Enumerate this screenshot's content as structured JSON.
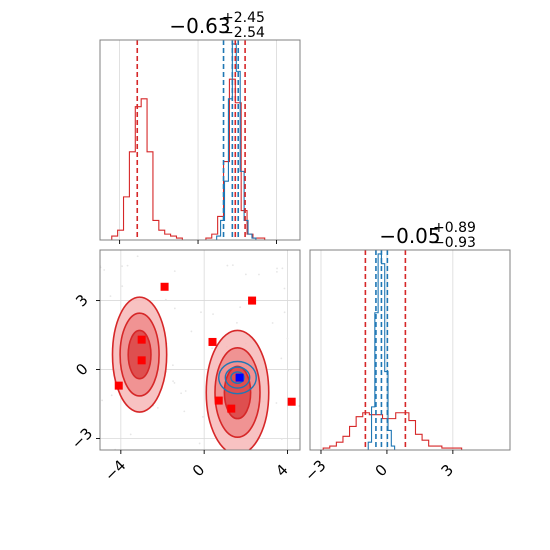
{
  "chart_data": {
    "type": "corner",
    "parameters": 2,
    "panels": [
      {
        "id": "hist-param-1",
        "type": "histogram",
        "title": {
          "main": "−0.63",
          "sup": "+2.45",
          "sub": "−2.54"
        },
        "x_range": [
          -5.0,
          5.2
        ],
        "x_ticks": [
          -4,
          0,
          4
        ],
        "x_tick_labels": [
          "",
          "",
          ""
        ],
        "grid": true,
        "series": [
          {
            "name": "",
            "color": "#d62728",
            "bin_edges": [
              -5.0,
              -4.7,
              -4.4,
              -4.1,
              -3.8,
              -3.5,
              -3.2,
              -2.9,
              -2.6,
              -2.3,
              -2.0,
              -1.7,
              -1.4,
              -1.1,
              -0.8,
              -0.5,
              -0.2,
              0.1,
              0.4,
              0.7,
              1.0,
              1.3,
              1.6,
              1.9,
              2.2,
              2.5,
              2.8,
              3.1,
              3.4,
              3.7,
              4.0,
              4.3,
              4.6,
              4.9,
              5.2
            ],
            "counts": [
              0,
              0,
              0.02,
              0.05,
              0.22,
              0.45,
              0.68,
              0.72,
              0.45,
              0.1,
              0.05,
              0.03,
              0.02,
              0.01,
              0,
              0,
              0,
              0,
              0.01,
              0.03,
              0.12,
              0.4,
              0.82,
              0.7,
              0.15,
              0.03,
              0.01,
              0.01,
              0,
              0,
              0,
              0,
              0,
              0
            ]
          },
          {
            "name": "",
            "color": "#1f77b4",
            "bin_edges": [
              0.75,
              0.95,
              1.15,
              1.35,
              1.55,
              1.75,
              1.95,
              2.15,
              2.35,
              2.55,
              2.75,
              2.95,
              3.15
            ],
            "counts": [
              0,
              0.02,
              0.1,
              0.3,
              0.72,
              1.0,
              0.86,
              0.35,
              0.1,
              0.03,
              0.01,
              0
            ]
          }
        ],
        "vlines": [
          {
            "x": -3.1,
            "color": "#d62728"
          },
          {
            "x": 1.9,
            "color": "#d62728"
          },
          {
            "x": 2.4,
            "color": "#d62728"
          },
          {
            "x": 1.3,
            "color": "#1f77b4"
          },
          {
            "x": 1.75,
            "color": "#1f77b4"
          },
          {
            "x": 2.05,
            "color": "#1f77b4"
          }
        ]
      },
      {
        "id": "scatter-2d",
        "type": "contour",
        "x_range": [
          -5.0,
          4.6
        ],
        "y_range": [
          -3.5,
          5.2
        ],
        "x_ticks": [
          -4,
          0,
          4
        ],
        "x_tick_labels": [
          "−4",
          "0",
          "4"
        ],
        "y_ticks": [
          -3,
          0,
          3
        ],
        "y_tick_labels": [
          "−3",
          "0",
          "3"
        ],
        "grid": true,
        "red_markers": [
          {
            "x": -1.9,
            "y": 3.6
          },
          {
            "x": 2.3,
            "y": 3.0
          },
          {
            "x": 0.4,
            "y": 1.2
          },
          {
            "x": -3.0,
            "y": 1.3
          },
          {
            "x": -3.0,
            "y": 0.4
          },
          {
            "x": -4.1,
            "y": -0.7
          },
          {
            "x": 0.7,
            "y": -1.35
          },
          {
            "x": 1.3,
            "y": -1.7
          },
          {
            "x": 4.2,
            "y": -1.4
          }
        ],
        "blue_marker": {
          "x": 1.7,
          "y": -0.35
        },
        "red_modes": [
          {
            "cx": -3.1,
            "cy": 0.65,
            "sx": 1.3,
            "sy": 2.5
          },
          {
            "cx": 1.6,
            "cy": -1.0,
            "sx": 1.5,
            "sy": 2.7
          }
        ],
        "blue_mode": {
          "cx": 1.6,
          "cy": -0.35,
          "sx": 0.9,
          "sy": 0.7
        }
      },
      {
        "id": "hist-param-2",
        "type": "histogram",
        "title": {
          "main": "−0.05",
          "sup": "+0.89",
          "sub": "−0.93"
        },
        "x_range": [
          -3.5,
          5.6
        ],
        "x_ticks": [
          -3,
          0,
          3
        ],
        "x_tick_labels": [
          "−3",
          "0",
          "3"
        ],
        "grid": true,
        "series": [
          {
            "name": "",
            "color": "#d62728",
            "bin_edges": [
              -3.5,
              -3.2,
              -2.9,
              -2.6,
              -2.3,
              -2.0,
              -1.7,
              -1.4,
              -1.1,
              -0.8,
              -0.5,
              -0.2,
              0.1,
              0.4,
              0.7,
              1.0,
              1.3,
              1.6,
              1.9,
              2.2,
              2.5,
              2.8,
              3.1,
              3.4,
              3.7,
              4.0,
              4.3,
              4.6,
              4.9,
              5.2,
              5.5
            ],
            "counts": [
              0,
              0,
              0.01,
              0.02,
              0.04,
              0.07,
              0.12,
              0.17,
              0.19,
              0.18,
              0.18,
              0.16,
              0.16,
              0.19,
              0.19,
              0.15,
              0.08,
              0.05,
              0.02,
              0.02,
              0.01,
              0.01,
              0.01,
              0,
              0,
              0,
              0,
              0,
              0,
              0
            ]
          },
          {
            "name": "",
            "color": "#1f77b4",
            "bin_edges": [
              -1.0,
              -0.85,
              -0.7,
              -0.55,
              -0.4,
              -0.25,
              -0.1,
              0.05,
              0.2,
              0.35,
              0.5
            ],
            "counts": [
              0,
              0.04,
              0.22,
              0.7,
              1.0,
              0.95,
              0.4,
              0.1,
              0.02,
              0
            ]
          }
        ],
        "vlines": [
          {
            "x": -0.98,
            "color": "#d62728"
          },
          {
            "x": 0.84,
            "color": "#d62728"
          },
          {
            "x": -0.5,
            "color": "#1f77b4"
          },
          {
            "x": -0.25,
            "color": "#1f77b4"
          },
          {
            "x": 0.02,
            "color": "#1f77b4"
          }
        ]
      }
    ]
  }
}
